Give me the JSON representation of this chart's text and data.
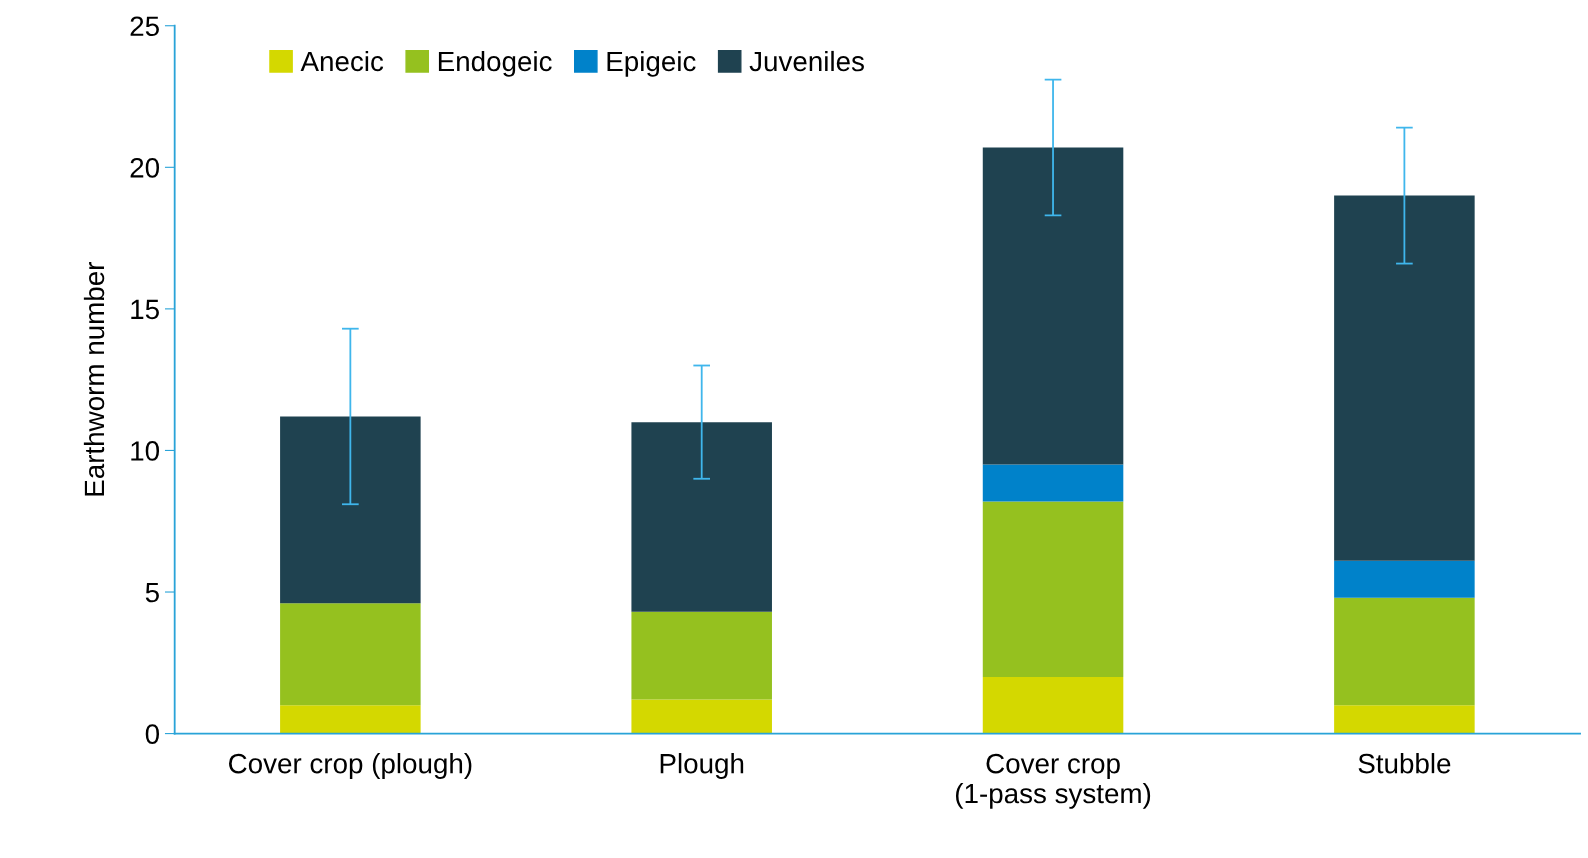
{
  "chart_data": {
    "type": "bar",
    "stacked": true,
    "ylabel": "Earthworm number",
    "categories": [
      "Cover crop (plough)",
      "Plough",
      "Cover crop\n(1-pass system)",
      "Stubble"
    ],
    "series": [
      {
        "name": "Anecic",
        "color": "#d4d800",
        "values": [
          1.0,
          1.2,
          2.0,
          1.0
        ]
      },
      {
        "name": "Endogeic",
        "color": "#95c11f",
        "values": [
          3.6,
          3.1,
          6.2,
          3.8
        ]
      },
      {
        "name": "Epigeic",
        "color": "#0082ca",
        "values": [
          0,
          0,
          1.3,
          1.3
        ]
      },
      {
        "name": "Juveniles",
        "color": "#1f4250",
        "values": [
          6.6,
          6.7,
          11.2,
          12.9
        ],
        "errors": [
          3.1,
          2.0,
          2.4,
          2.4
        ]
      }
    ],
    "ylim": [
      0,
      25
    ],
    "yticks": [
      0,
      5,
      10,
      15,
      20,
      25
    ],
    "grid": false,
    "legend": "top left"
  }
}
